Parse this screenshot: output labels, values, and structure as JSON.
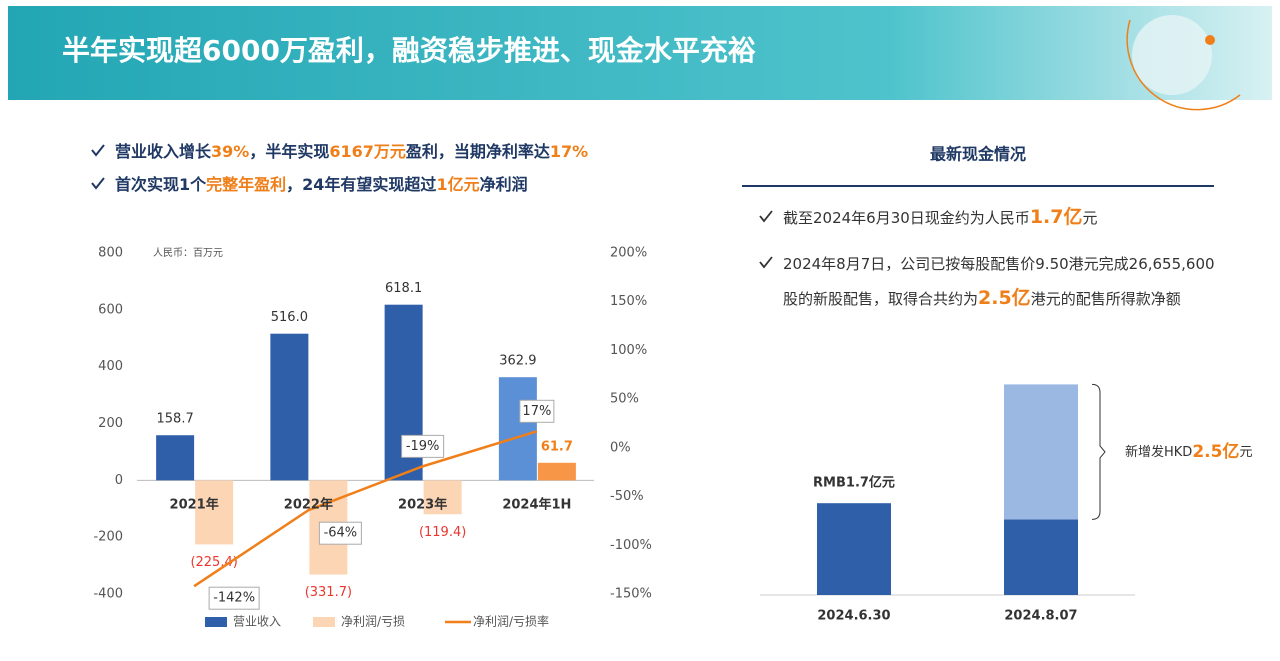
{
  "title": "半年实现超6000万盈利，融资稳步推进、现金水平充裕",
  "highlights": [
    [
      "营业收入增长",
      "39%",
      "，半年实现",
      "6167万元",
      "盈利，当期净利率达",
      "17%"
    ],
    [
      "首次实现1个",
      "完整年盈利",
      "，24年有望实现超过",
      "1亿元",
      "净利润"
    ]
  ],
  "chart_data": [
    {
      "type": "combo",
      "unit_note": "人民币：百万元",
      "categories": [
        "2021年",
        "2022年",
        "2023年",
        "2024年1H"
      ],
      "series": [
        {
          "name": "营业收入",
          "type": "bar",
          "colors": [
            "#2e5fa8",
            "#2e5fa8",
            "#2e5fa8",
            "#5b8fd6"
          ],
          "values": [
            158.7,
            516.0,
            618.1,
            362.9
          ],
          "value_labels": [
            "158.7",
            "516.0",
            "618.1",
            "362.9"
          ]
        },
        {
          "name": "净利润/亏损",
          "type": "bar",
          "colors": [
            "#fcd5b5",
            "#fcd5b5",
            "#fcd5b5",
            "#f79646"
          ],
          "label_colors": [
            "#e8382f",
            "#e8382f",
            "#e8382f",
            "#f07f19"
          ],
          "values": [
            -225.4,
            -331.7,
            -119.4,
            61.7
          ],
          "value_labels": [
            "(225.4)",
            "(331.7)",
            "(119.4)",
            "61.7"
          ]
        },
        {
          "name": "净利润/亏损率",
          "type": "line",
          "axis": "y2",
          "color": "#f07f19",
          "values": [
            -142,
            -64,
            -19,
            17
          ],
          "value_labels": [
            "-142%",
            "-64%",
            "-19%",
            "17%"
          ]
        }
      ],
      "ylim": [
        -400,
        800
      ],
      "yticks": [
        -400,
        -200,
        0,
        200,
        400,
        600,
        800
      ],
      "y2lim": [
        -150,
        200
      ],
      "y2ticks": [
        {
          "value": -150,
          "label": "-150%"
        },
        {
          "value": -100,
          "label": "-100%"
        },
        {
          "value": -50,
          "label": "-50%"
        },
        {
          "value": 0,
          "label": "0%"
        },
        {
          "value": 50,
          "label": "50%"
        },
        {
          "value": 100,
          "label": "100%"
        },
        {
          "value": 150,
          "label": "150%"
        },
        {
          "value": 200,
          "label": "200%"
        }
      ]
    },
    {
      "type": "stacked_bar",
      "title": "最新现金情况",
      "notes": [
        [
          "截至2024年6月30日现金约为人民币",
          "1.7亿",
          "元"
        ],
        [
          "2024年8月7日，公司已按每股配售价9.50港元完成26,655,600股的新股配售，取得合共约为",
          "2.5亿",
          "港元的配售所得款净额"
        ]
      ],
      "categories": [
        "2024.6.30",
        "2024.8.07"
      ],
      "series": [
        {
          "color": "#2e5fa8",
          "values": [
            1.7,
            1.4
          ],
          "value_labels": [
            "RMB1.7亿元",
            null
          ]
        },
        {
          "color": "#9ab8e2",
          "values": [
            null,
            2.5
          ]
        }
      ],
      "annotation": [
        "新增发HKD",
        "2.5亿",
        "元"
      ],
      "ylim": [
        0,
        4.5
      ]
    }
  ]
}
